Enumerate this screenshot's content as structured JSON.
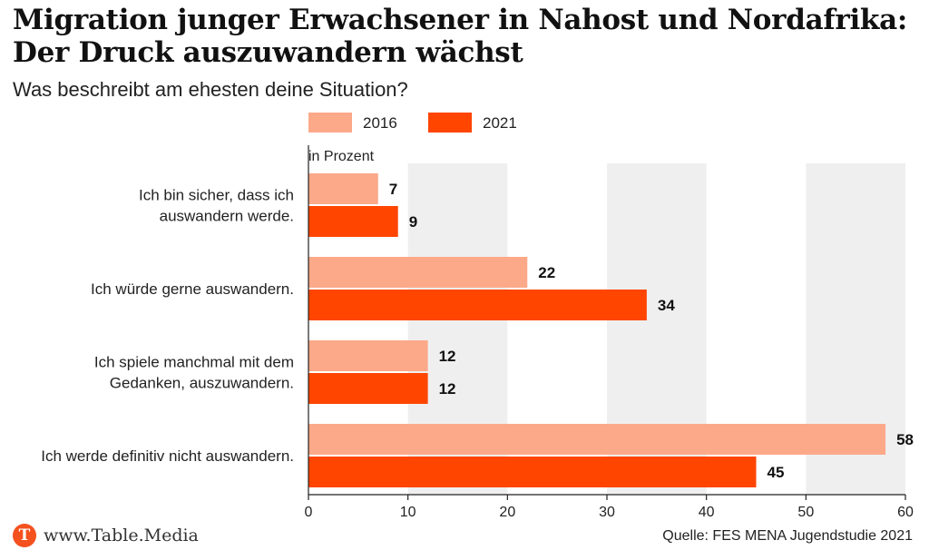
{
  "title": "Migration junger Erwachsener in Nahost und Nordafrika: Der Druck auszuwandern wächst",
  "subtitle": "Was beschreibt am ehesten deine Situation?",
  "footer": {
    "logo_letter": "T",
    "brand": "www.Table.Media",
    "source": "Quelle: FES MENA Jugendstudie 2021"
  },
  "colors": {
    "s2016": "#fca98a",
    "s2021": "#ff4500",
    "band": "#efefef",
    "logo": "#f4511e"
  },
  "chart_data": {
    "type": "bar",
    "orientation": "horizontal",
    "unit_label": "in Prozent",
    "categories": [
      [
        "Ich bin sicher, dass ich",
        "auswandern werde."
      ],
      [
        "Ich würde gerne auswandern."
      ],
      [
        "Ich spiele manchmal mit dem",
        "Gedanken, auszuwandern."
      ],
      [
        "Ich werde definitiv nicht auswandern."
      ]
    ],
    "series": [
      {
        "name": "2016",
        "values": [
          7,
          22,
          12,
          58
        ]
      },
      {
        "name": "2021",
        "values": [
          9,
          34,
          12,
          45
        ]
      }
    ],
    "xlim": [
      0,
      60
    ],
    "xticks": [
      0,
      10,
      20,
      30,
      40,
      50,
      60
    ],
    "legend": "top",
    "grid": "alternating vertical bands"
  }
}
